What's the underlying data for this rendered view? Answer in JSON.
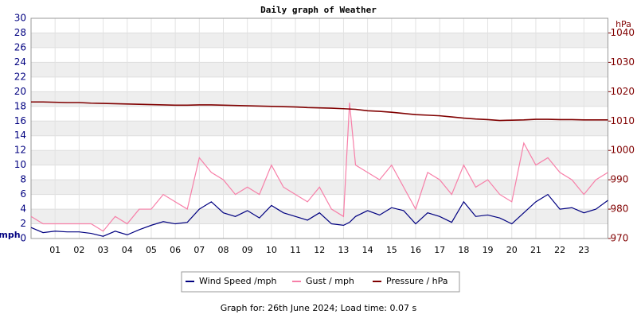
{
  "chart_data": {
    "type": "line",
    "title": "Daily graph of Weather",
    "y_label": "mph",
    "y2_label": "hPa",
    "footer": "Graph for: 26th June 2024; Load time: 0.07 s",
    "x": [
      0,
      0.5,
      1,
      1.5,
      2,
      2.5,
      3,
      3.5,
      4,
      4.5,
      5,
      5.5,
      6,
      6.5,
      7,
      7.5,
      8,
      8.5,
      9,
      9.5,
      10,
      10.5,
      11,
      11.5,
      12,
      12.5,
      13,
      13.25,
      13.5,
      14,
      14.5,
      15,
      15.5,
      16,
      16.5,
      17,
      17.5,
      18,
      18.5,
      19,
      19.5,
      20,
      20.5,
      21,
      21.5,
      22,
      22.5,
      23,
      23.5,
      24
    ],
    "xlim": [
      0,
      24
    ],
    "xticks": [
      {
        "value": 1,
        "label": "01"
      },
      {
        "value": 2,
        "label": "02"
      },
      {
        "value": 3,
        "label": "03"
      },
      {
        "value": 4,
        "label": "04"
      },
      {
        "value": 5,
        "label": "05"
      },
      {
        "value": 6,
        "label": "06"
      },
      {
        "value": 7,
        "label": "07"
      },
      {
        "value": 8,
        "label": "08"
      },
      {
        "value": 9,
        "label": "09"
      },
      10,
      11,
      12,
      13,
      14,
      15,
      16,
      17,
      18,
      19,
      20,
      21,
      22,
      23
    ],
    "ylim": [
      0,
      30
    ],
    "yticks": [
      0,
      2,
      4,
      6,
      8,
      10,
      12,
      14,
      16,
      18,
      20,
      22,
      24,
      26,
      28,
      30
    ],
    "y2lim": [
      970,
      1045
    ],
    "y2ticks": [
      970,
      980,
      990,
      1000,
      1010,
      1020,
      1030,
      1040
    ],
    "grid": true,
    "series": [
      {
        "name": "Gust / mph",
        "color": "#f77fa8",
        "values": [
          3,
          2,
          2,
          2,
          2,
          2,
          1,
          3,
          2,
          4,
          4,
          6,
          5,
          4,
          11,
          9,
          8,
          6,
          7,
          6,
          10,
          7,
          6,
          5,
          7,
          4,
          3,
          18.5,
          10,
          9,
          8,
          10,
          7,
          4,
          9,
          8,
          6,
          10,
          7,
          8,
          6,
          5,
          13,
          10,
          11,
          9,
          8,
          6,
          8,
          9
        ]
      },
      {
        "name": "Wind Speed /mph",
        "color": "#000080",
        "values": [
          1.5,
          0.8,
          1,
          0.9,
          0.9,
          0.7,
          0.3,
          1,
          0.5,
          1.2,
          1.8,
          2.3,
          2,
          2.2,
          4,
          5,
          3.5,
          3,
          3.8,
          2.8,
          4.5,
          3.5,
          3,
          2.5,
          3.5,
          2,
          1.8,
          2.2,
          3,
          3.8,
          3.2,
          4.2,
          3.8,
          2,
          3.5,
          3,
          2.2,
          5,
          3,
          3.2,
          2.8,
          2,
          3.5,
          5,
          6,
          4,
          4.2,
          3.5,
          4,
          5.2
        ]
      },
      {
        "name": "Pressure / hPa",
        "color": "#800000",
        "axis": "y2",
        "values": [
          1016.5,
          1016.5,
          1016.4,
          1016.3,
          1016.3,
          1016.1,
          1016,
          1015.9,
          1015.8,
          1015.7,
          1015.6,
          1015.5,
          1015.4,
          1015.4,
          1015.5,
          1015.5,
          1015.4,
          1015.3,
          1015.2,
          1015.1,
          1015,
          1014.9,
          1014.8,
          1014.6,
          1014.5,
          1014.4,
          1014.2,
          1014.1,
          1014,
          1013.5,
          1013.3,
          1013,
          1012.6,
          1012.2,
          1012,
          1011.8,
          1011.4,
          1011,
          1010.7,
          1010.5,
          1010.2,
          1010.3,
          1010.4,
          1010.6,
          1010.6,
          1010.5,
          1010.5,
          1010.4,
          1010.4,
          1010.4
        ]
      }
    ],
    "legend_order": [
      1,
      0,
      2
    ]
  }
}
